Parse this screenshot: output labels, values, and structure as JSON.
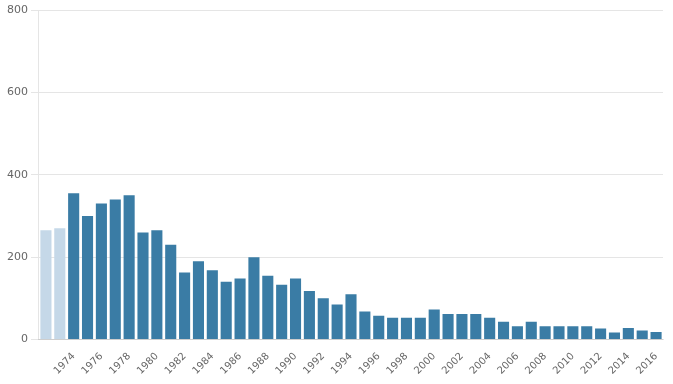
{
  "chart_data": {
    "type": "bar",
    "categories": [
      null,
      null,
      "1974",
      null,
      "1976",
      null,
      "1978",
      null,
      "1980",
      null,
      "1982",
      null,
      "1984",
      null,
      "1986",
      null,
      "1988",
      null,
      "1990",
      null,
      "1992",
      null,
      "1994",
      null,
      "1996",
      null,
      "1998",
      null,
      "2000",
      null,
      "2002",
      null,
      "2004",
      null,
      "2006",
      null,
      "2008",
      null,
      "2010",
      null,
      "2012",
      null,
      "2014",
      null,
      "2016"
    ],
    "values": [
      265,
      270,
      355,
      300,
      330,
      340,
      350,
      260,
      265,
      230,
      163,
      190,
      168,
      140,
      148,
      200,
      155,
      133,
      148,
      118,
      100,
      85,
      110,
      68,
      58,
      53,
      53,
      53,
      73,
      62,
      62,
      62,
      53,
      43,
      32,
      43,
      32,
      32,
      32,
      32,
      27,
      17,
      28,
      22,
      18
    ],
    "colors": [
      "#c5d8e8",
      "#c5d8e8",
      "#3a7ca5",
      "#3a7ca5",
      "#3a7ca5",
      "#3a7ca5",
      "#3a7ca5",
      "#3a7ca5",
      "#3a7ca5",
      "#3a7ca5",
      "#3a7ca5",
      "#3a7ca5",
      "#3a7ca5",
      "#3a7ca5",
      "#3a7ca5",
      "#3a7ca5",
      "#3a7ca5",
      "#3a7ca5",
      "#3a7ca5",
      "#3a7ca5",
      "#3a7ca5",
      "#3a7ca5",
      "#3a7ca5",
      "#3a7ca5",
      "#3a7ca5",
      "#3a7ca5",
      "#3a7ca5",
      "#3a7ca5",
      "#3a7ca5",
      "#3a7ca5",
      "#3a7ca5",
      "#3a7ca5",
      "#3a7ca5",
      "#3a7ca5",
      "#3a7ca5",
      "#3a7ca5",
      "#3a7ca5",
      "#3a7ca5",
      "#3a7ca5",
      "#3a7ca5",
      "#3a7ca5",
      "#3a7ca5",
      "#3a7ca5",
      "#3a7ca5",
      "#3a7ca5"
    ],
    "ylim": [
      0,
      800
    ],
    "yticks": [
      0,
      200,
      400,
      600,
      800
    ],
    "grid": true
  }
}
